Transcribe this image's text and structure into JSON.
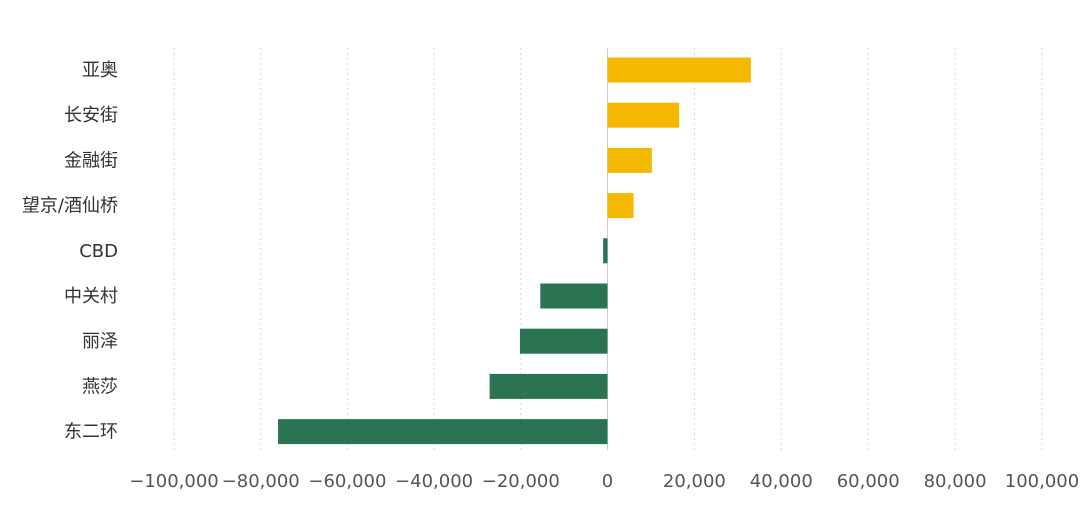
{
  "chart_data": {
    "type": "bar",
    "orientation": "horizontal",
    "title": "",
    "xlabel": "",
    "ylabel": "",
    "categories": [
      "亚奥",
      "长安街",
      "金融街",
      "望京/酒仙桥",
      "CBD",
      "中关村",
      "丽泽",
      "燕莎",
      "东二环"
    ],
    "values": [
      33000,
      16500,
      10200,
      6000,
      -1000,
      -15500,
      -20200,
      -27200,
      -76000
    ],
    "xlim": [
      -100000,
      100000
    ],
    "xticks": [
      -100000,
      -80000,
      -60000,
      -40000,
      -20000,
      0,
      20000,
      40000,
      60000,
      80000,
      100000
    ],
    "xtick_labels": [
      "−100,000",
      "−80,000",
      "−60,000",
      "−40,000",
      "−20,000",
      "0",
      "20,000",
      "40,000",
      "60,000",
      "80,000",
      "100,000"
    ],
    "grid": true,
    "legend": "none",
    "colors": {
      "positive": "#F5B800",
      "negative": "#2A7454"
    }
  }
}
